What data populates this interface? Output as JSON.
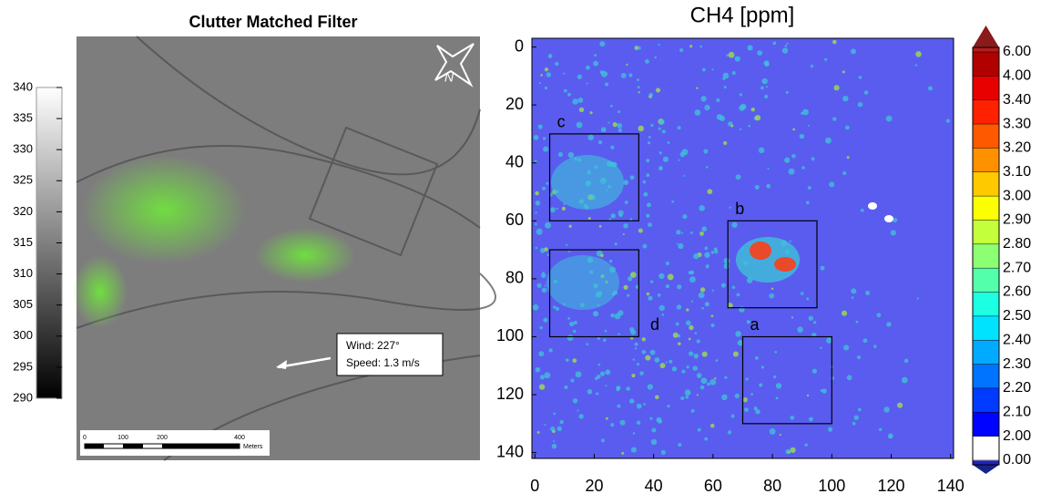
{
  "left_panel": {
    "title": "Clutter Matched Filter",
    "colorbar": {
      "lim": [
        290,
        340
      ],
      "ticks": [
        290,
        295,
        300,
        305,
        310,
        315,
        320,
        325,
        330,
        335,
        340
      ]
    },
    "north": "N",
    "scale_bar": {
      "ticks": [
        "0",
        "100",
        "200",
        "400"
      ],
      "unit": "Meters"
    },
    "wind_box": [
      "Wind: 227°",
      "Speed: 1.3 m/s"
    ]
  },
  "right_panel": {
    "title": "CH4 [ppm]",
    "xlim": [
      -1,
      141
    ],
    "ylim": [
      -3,
      142
    ],
    "xticks": [
      0,
      20,
      40,
      60,
      80,
      100,
      120,
      140
    ],
    "yticks": [
      0,
      20,
      40,
      60,
      80,
      100,
      120,
      140
    ],
    "regions": [
      {
        "label": "c",
        "x": [
          5,
          35
        ],
        "y": [
          30,
          60
        ]
      },
      {
        "label": "b",
        "x": [
          65,
          95
        ],
        "y": [
          60,
          90
        ]
      },
      {
        "label": "a",
        "x": [
          70,
          100
        ],
        "y": [
          100,
          130
        ]
      },
      {
        "x": [
          5,
          35
        ],
        "y": [
          70,
          100
        ]
      }
    ],
    "annotations": [
      "d"
    ],
    "colorbar": [
      "6.00",
      "4.00",
      "3.40",
      "3.30",
      "3.20",
      "3.10",
      "3.00",
      "2.90",
      "2.80",
      "2.70",
      "2.60",
      "2.50",
      "2.40",
      "2.30",
      "2.20",
      "2.10",
      "2.00",
      "0.00"
    ]
  }
}
